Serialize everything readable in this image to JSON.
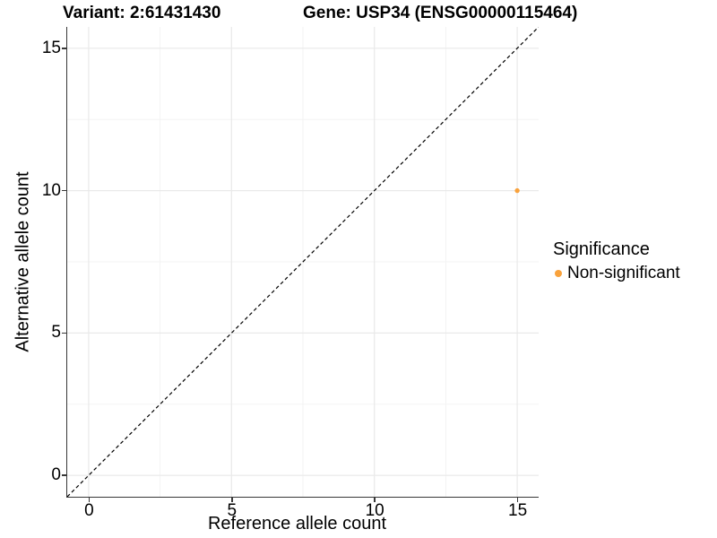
{
  "header": {
    "variant_title": "Variant: 2:61431430",
    "gene_title": "Gene: USP34 (ENSG00000115464)"
  },
  "legend": {
    "title": "Significance",
    "items": [
      {
        "label": "Non-significant",
        "color": "#F9A23C",
        "marker": "circle-icon"
      }
    ]
  },
  "colors": {
    "point": "#F9A23C",
    "grid_major": "#E9E9E9",
    "grid_minor": "#F3F3F3",
    "axis_line": "#383838",
    "reference_line": "#000000",
    "background": "#FFFFFF"
  },
  "chart_data": {
    "type": "scatter",
    "title": "Variant: 2:61431430    Gene: USP34 (ENSG00000115464)",
    "xlabel": "Reference allele count",
    "ylabel": "Alternative allele count",
    "xlim": [
      -0.75,
      15.75
    ],
    "ylim": [
      -0.75,
      15.75
    ],
    "x_ticks": [
      0,
      5,
      10,
      15
    ],
    "y_ticks": [
      0,
      5,
      10,
      15
    ],
    "grid_minor_breaks": [
      2.5,
      7.5,
      12.5
    ],
    "grid": "on",
    "legend_position": "right",
    "series": [
      {
        "name": "Non-significant",
        "color": "#F9A23C",
        "points": [
          {
            "x": 15,
            "y": 10
          }
        ]
      }
    ],
    "reference_line": {
      "type": "identity (y = x)",
      "style": "dashed",
      "color": "#000000"
    }
  }
}
